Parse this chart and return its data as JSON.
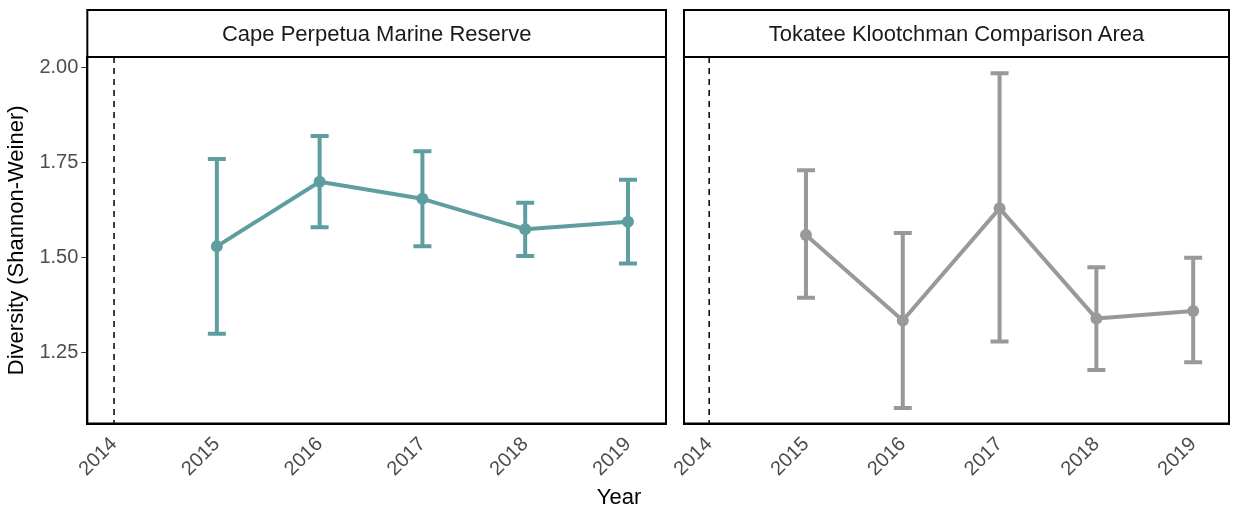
{
  "chart_data": [
    {
      "type": "line",
      "title": "Cape Perpetua Marine Reserve",
      "ylabel": "Diversity (Shannon-Weiner)",
      "xlabel": "Year",
      "x": [
        2015,
        2016,
        2017,
        2018,
        2019
      ],
      "xlim": [
        2013.74,
        2019.37
      ],
      "xticks": [
        2014,
        2015,
        2016,
        2017,
        2018,
        2019
      ],
      "ylim": [
        1.064,
        2.028
      ],
      "yticks": [
        {
          "value": 1.25,
          "label": "1.25"
        },
        {
          "value": 1.5,
          "label": "1.50"
        },
        {
          "value": 1.75,
          "label": "1.75"
        },
        {
          "value": 2,
          "label": "2.00"
        }
      ],
      "marker": "circle",
      "ref_lines": [
        {
          "axis": "x",
          "value": 2014,
          "line_style": "dashed",
          "color": "#000000"
        }
      ],
      "series": [
        {
          "color": "#5f9ea0",
          "values": [
            1.53,
            1.7,
            1.655,
            1.575,
            1.595
          ],
          "errors": [
            [
              1.3,
              1.76
            ],
            [
              1.58,
              1.82
            ],
            [
              1.53,
              1.78
            ],
            [
              1.505,
              1.645
            ],
            [
              1.485,
              1.705
            ]
          ]
        }
      ]
    },
    {
      "type": "line",
      "title": "Tokatee Klootchman Comparison Area",
      "x": [
        2015,
        2016,
        2017,
        2018,
        2019
      ],
      "xlim": [
        2013.74,
        2019.37
      ],
      "xticks": [
        2014,
        2015,
        2016,
        2017,
        2018,
        2019
      ],
      "ylim": [
        1.064,
        2.028
      ],
      "tick_labels": "x",
      "marker": "circle",
      "ref_lines": [
        {
          "axis": "x",
          "value": 2014,
          "line_style": "dashed",
          "color": "#000000"
        }
      ],
      "series": [
        {
          "color": "#999999",
          "values": [
            1.56,
            1.335,
            1.63,
            1.34,
            1.36
          ],
          "errors": [
            [
              1.395,
              1.73
            ],
            [
              1.105,
              1.565
            ],
            [
              1.28,
              1.985
            ],
            [
              1.205,
              1.475
            ],
            [
              1.225,
              1.5
            ]
          ]
        }
      ]
    }
  ]
}
